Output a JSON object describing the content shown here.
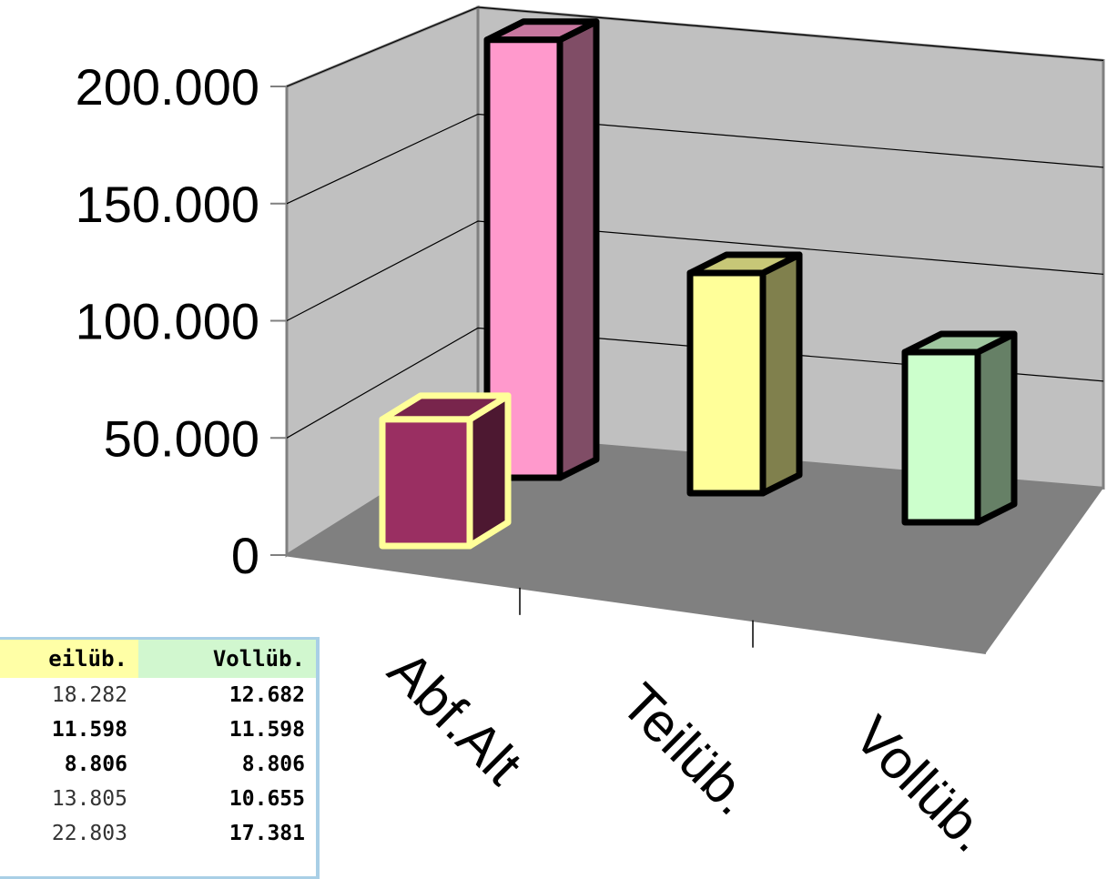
{
  "chart_data": {
    "type": "bar",
    "title": "",
    "xlabel": "",
    "ylabel": "",
    "ylim": [
      0,
      200000
    ],
    "yticks": [
      0,
      50000,
      100000,
      150000,
      200000
    ],
    "ytick_labels": [
      "0",
      "50.000",
      "100.000",
      "150.000",
      "200.000"
    ],
    "categories": [
      "Abf.Alt",
      "Teilüb.",
      "Vollüb."
    ],
    "front_value": 60000,
    "front_color": "#9a2f62",
    "back_values": [
      175000,
      88000,
      68000
    ],
    "back_colors": [
      "#ff99cc",
      "#ffff99",
      "#ccffcc"
    ],
    "legend": "none",
    "grid": true
  },
  "snippet": {
    "headers": [
      "eilüb.",
      "Vollüb."
    ],
    "rows": [
      {
        "a": "18.282",
        "b": "12.682",
        "a_bold": false
      },
      {
        "a": "11.598",
        "b": "11.598",
        "a_bold": true
      },
      {
        "a": "8.806",
        "b": "8.806",
        "a_bold": true
      },
      {
        "a": "13.805",
        "b": "10.655",
        "a_bold": false
      },
      {
        "a": "22.803",
        "b": "17.381",
        "a_bold": false
      }
    ]
  }
}
